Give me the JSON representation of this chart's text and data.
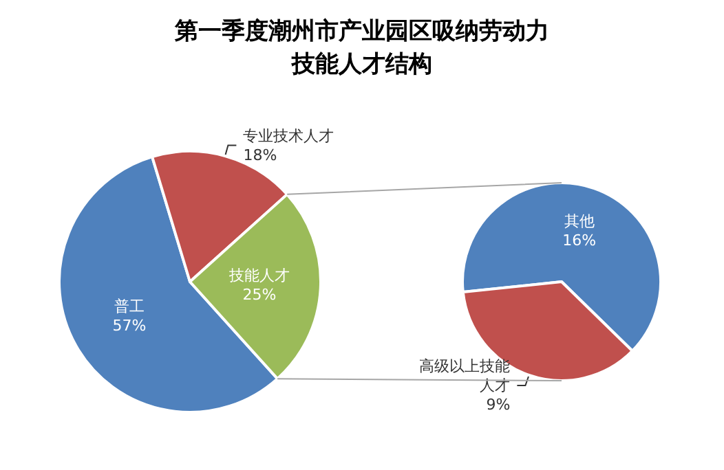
{
  "chart_data": [
    {
      "type": "pie",
      "title": "第一季度潮州市产业园区吸纳劳动力技能人才结构",
      "categories": [
        "普工",
        "专业技术人才",
        "技能人才"
      ],
      "values": [
        57,
        18,
        25
      ],
      "value_labels": [
        "57%",
        "18%",
        "25%"
      ],
      "colors": [
        "#4f81bd",
        "#c0504d",
        "#9bbb59"
      ]
    },
    {
      "type": "pie",
      "categories": [
        "其他",
        "高级以上技能人才"
      ],
      "values": [
        16,
        9
      ],
      "value_labels": [
        "16%",
        "9%"
      ],
      "colors": [
        "#4f81bd",
        "#c0504d"
      ]
    }
  ]
}
